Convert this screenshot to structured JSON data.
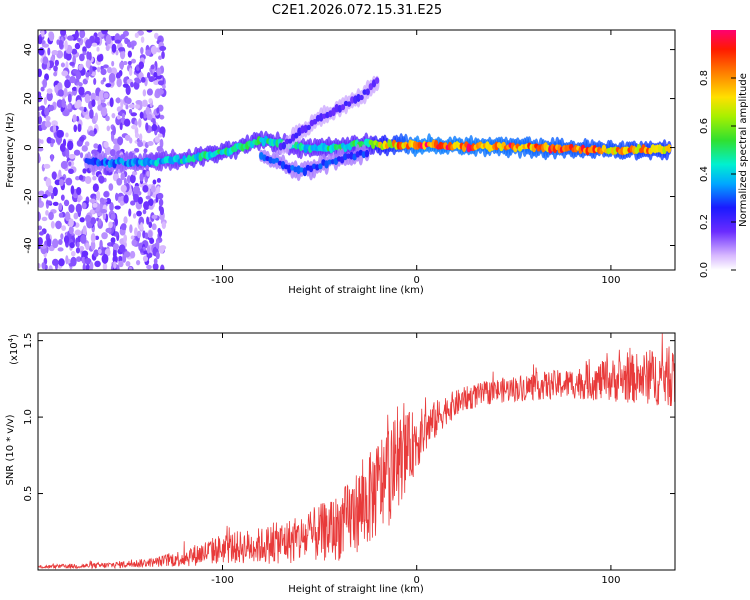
{
  "title": "C2E1.2026.072.15.31.E25",
  "chart_data": [
    {
      "type": "heatmap",
      "xlabel": "Height of straight line (km)",
      "ylabel": "Frequency (Hz)",
      "xlim": [
        -195,
        133
      ],
      "ylim": [
        -50,
        48
      ],
      "xticks": [
        -100,
        0,
        100
      ],
      "yticks": [
        -40,
        -20,
        0,
        20,
        40
      ],
      "colorbar": {
        "label": "Normalized spectral amplitude",
        "range": [
          0,
          1
        ],
        "ticks": [
          "0.0",
          "0.2",
          "0.4",
          "0.6",
          "0.8"
        ],
        "tick_values": [
          0,
          0.2,
          0.4,
          0.6,
          0.8
        ]
      },
      "features": [
        {
          "name": "noise-band",
          "x_range": [
            -195,
            -130
          ],
          "y_range": [
            -50,
            48
          ],
          "amplitude": 0.1
        },
        {
          "name": "main-trace",
          "points": [
            [
              -170,
              -6
            ],
            [
              -140,
              -6
            ],
            [
              -120,
              -5
            ],
            [
              -100,
              -2
            ],
            [
              -80,
              3
            ],
            [
              -60,
              0
            ],
            [
              -40,
              0
            ],
            [
              -25,
              2
            ],
            [
              -20,
              1
            ],
            [
              0,
              1
            ],
            [
              60,
              0
            ],
            [
              100,
              -1
            ],
            [
              130,
              -1
            ]
          ],
          "amplitude": [
            0.3,
            0.4,
            0.45,
            0.5,
            0.5,
            0.45,
            0.5,
            0.5,
            0.7,
            0.95,
            0.9,
            0.85,
            0.8
          ]
        },
        {
          "name": "branch-up",
          "points": [
            [
              -70,
              0
            ],
            [
              -50,
              12
            ],
            [
              -30,
              20
            ],
            [
              -20,
              27
            ]
          ],
          "amplitude": 0.2
        },
        {
          "name": "branch-down",
          "points": [
            [
              -80,
              -3
            ],
            [
              -60,
              -10
            ],
            [
              -45,
              -6
            ],
            [
              -25,
              -2
            ]
          ],
          "amplitude": 0.3
        }
      ]
    },
    {
      "type": "line",
      "xlabel": "Height of straight line (km)",
      "ylabel": "SNR (10 * v/v)",
      "yscale_label": "(x10",
      "yscale_exp": "4",
      "xlim": [
        -195,
        133
      ],
      "ylim": [
        0,
        1.55
      ],
      "xticks": [
        -100,
        0,
        100
      ],
      "yticks": [
        0.5,
        1.0,
        1.5
      ],
      "yticklabels": [
        "0.5",
        "1.0",
        "1.5"
      ],
      "color": "#e83a3a",
      "trend": {
        "x": [
          -195,
          -160,
          -135,
          -120,
          -100,
          -80,
          -60,
          -40,
          -25,
          -15,
          -5,
          5,
          15,
          25,
          40,
          60,
          80,
          100,
          120,
          133
        ],
        "y": [
          0.02,
          0.03,
          0.05,
          0.08,
          0.14,
          0.16,
          0.2,
          0.28,
          0.45,
          0.62,
          0.78,
          0.92,
          1.05,
          1.12,
          1.17,
          1.2,
          1.22,
          1.24,
          1.26,
          1.26
        ],
        "amp": [
          0.01,
          0.02,
          0.03,
          0.06,
          0.1,
          0.12,
          0.16,
          0.22,
          0.3,
          0.35,
          0.25,
          0.15,
          0.1,
          0.08,
          0.08,
          0.09,
          0.1,
          0.14,
          0.18,
          0.2
        ]
      },
      "samples": 1500
    }
  ]
}
